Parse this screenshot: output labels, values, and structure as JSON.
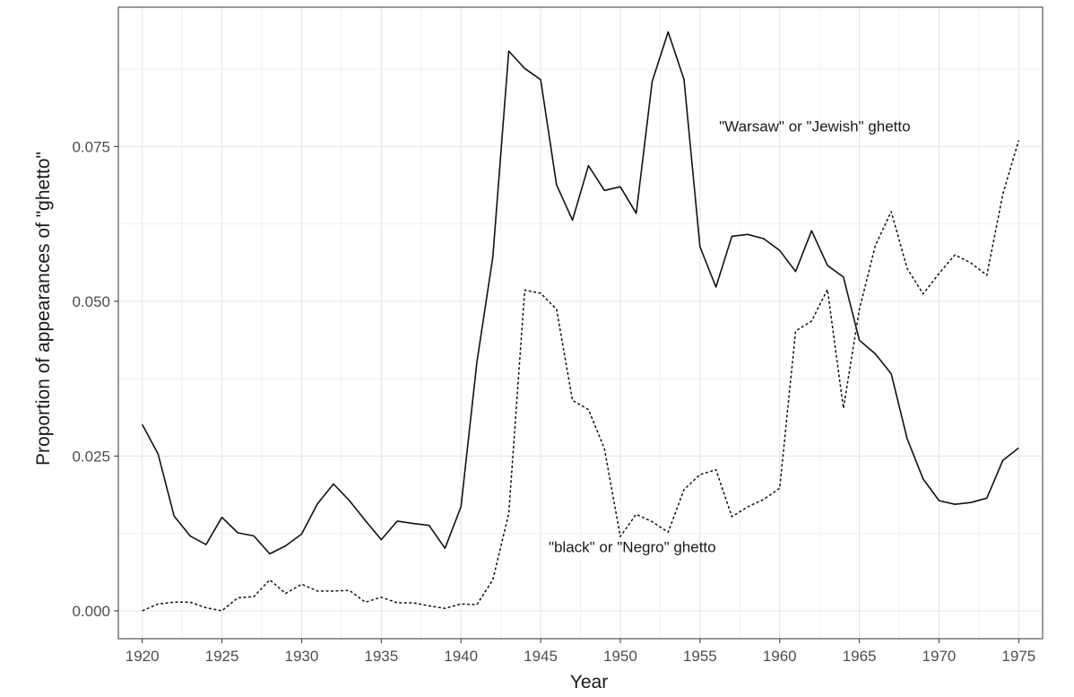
{
  "chart_data": {
    "type": "line",
    "title": "",
    "xlabel": "Year",
    "ylabel": "Proportion of appearances of \"ghetto\"",
    "xlim": [
      1918.5,
      1976.5
    ],
    "ylim": [
      -0.0045,
      0.0975
    ],
    "x_ticks": [
      1920,
      1925,
      1930,
      1935,
      1940,
      1945,
      1950,
      1955,
      1960,
      1965,
      1970,
      1975
    ],
    "y_ticks": [
      0.0,
      0.025,
      0.05,
      0.075
    ],
    "y_tick_labels": [
      "0.000",
      "0.025",
      "0.050",
      "0.075"
    ],
    "grid": true,
    "legend": "none",
    "x": [
      1920,
      1921,
      1922,
      1923,
      1924,
      1925,
      1926,
      1927,
      1928,
      1929,
      1930,
      1931,
      1932,
      1933,
      1934,
      1935,
      1936,
      1937,
      1938,
      1939,
      1940,
      1941,
      1942,
      1943,
      1944,
      1945,
      1946,
      1947,
      1948,
      1949,
      1950,
      1951,
      1952,
      1953,
      1954,
      1955,
      1956,
      1957,
      1958,
      1959,
      1960,
      1961,
      1962,
      1963,
      1964,
      1965,
      1966,
      1967,
      1968,
      1969,
      1970,
      1971,
      1972,
      1973,
      1974,
      1975
    ],
    "series": [
      {
        "style": "solid",
        "values": [
          0.0301,
          0.0253,
          0.0153,
          0.0121,
          0.0107,
          0.0151,
          0.0126,
          0.0121,
          0.0092,
          0.0105,
          0.0124,
          0.0173,
          0.0205,
          0.0178,
          0.0146,
          0.0115,
          0.0145,
          0.0141,
          0.0138,
          0.0101,
          0.0168,
          0.0402,
          0.0571,
          0.0904,
          0.0876,
          0.0858,
          0.0688,
          0.0631,
          0.0719,
          0.0679,
          0.0685,
          0.0642,
          0.0855,
          0.0935,
          0.0858,
          0.0588,
          0.0523,
          0.0605,
          0.0608,
          0.0601,
          0.0582,
          0.0548,
          0.0614,
          0.0558,
          0.0539,
          0.0437,
          0.0415,
          0.0383,
          0.0278,
          0.0213,
          0.0178,
          0.0172,
          0.0175,
          0.0182,
          0.0243,
          0.0263
        ]
      },
      {
        "style": "dashed",
        "values": [
          0.0,
          0.0011,
          0.0014,
          0.0014,
          0.0005,
          0.0,
          0.0021,
          0.0023,
          0.005,
          0.0028,
          0.0043,
          0.0032,
          0.0032,
          0.0033,
          0.0014,
          0.0022,
          0.0013,
          0.0013,
          0.0008,
          0.0004,
          0.0011,
          0.001,
          0.005,
          0.0157,
          0.0518,
          0.0513,
          0.0487,
          0.034,
          0.0325,
          0.0262,
          0.012,
          0.0156,
          0.0144,
          0.0127,
          0.0196,
          0.022,
          0.0228,
          0.0152,
          0.0168,
          0.018,
          0.0198,
          0.0452,
          0.0468,
          0.0519,
          0.0327,
          0.0487,
          0.059,
          0.0645,
          0.0553,
          0.0512,
          0.0545,
          0.0575,
          0.0562,
          0.0542,
          0.0673,
          0.076
        ]
      }
    ],
    "annotations": [
      {
        "text": "\"Warsaw\" or \"Jewish\" ghetto",
        "x": 1956.2,
        "y": 0.0774
      },
      {
        "text": "\"black\" or \"Negro\" ghetto",
        "x": 1945.5,
        "y": 0.0095
      }
    ]
  }
}
